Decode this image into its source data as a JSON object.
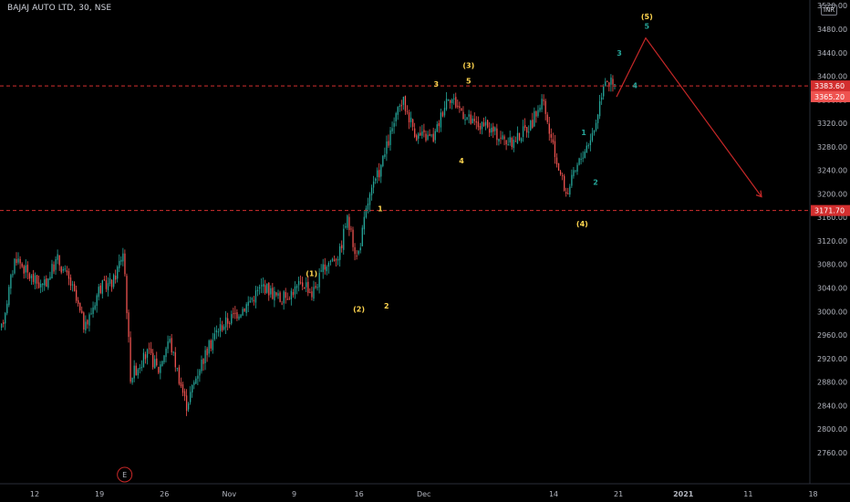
{
  "header": {
    "title": "BAJAJ AUTO LTD, 30, NSE",
    "currency": "INR"
  },
  "colors": {
    "background": "#000000",
    "candle_up": "#26a69a",
    "candle_down": "#ef5350",
    "level_line": "#d32f2f",
    "projection_line": "#c62828",
    "wave_primary": "#ffd54f",
    "wave_minor": "#26a69a",
    "axis_text": "#b2b5be"
  },
  "chart_data": {
    "type": "candlestick",
    "title": "BAJAJ AUTO LTD, 30, NSE",
    "ylim": [
      2735,
      3525
    ],
    "y_ticks": [
      3520,
      3480,
      3440,
      3400,
      3360,
      3320,
      3280,
      3240,
      3200,
      3160,
      3120,
      3080,
      3040,
      3000,
      2960,
      2920,
      2880,
      2840,
      2800,
      2760
    ],
    "y_tick_labels": [
      "3520.00",
      "3480.00",
      "3440.00",
      "3400.00",
      "3360.00",
      "3320.00",
      "3280.00",
      "3240.00",
      "3200.00",
      "3160.00",
      "3120.00",
      "3080.00",
      "3040.00",
      "3000.00",
      "2960.00",
      "2920.00",
      "2880.00",
      "2840.00",
      "2800.00",
      "2760.00"
    ],
    "x_tick_labels": [
      "12",
      "19",
      "26",
      "Nov",
      "9",
      "16",
      "Dec",
      "14",
      "21",
      "2021",
      "11",
      "18"
    ],
    "x_tick_fracs": [
      0.0,
      0.0704,
      0.1408,
      0.2112,
      0.2817,
      0.3521,
      0.4225,
      0.5634,
      0.6338,
      0.7042,
      0.7746,
      0.8451
    ],
    "x_tick_bold": [
      false,
      false,
      false,
      false,
      false,
      false,
      false,
      false,
      false,
      true,
      false,
      false
    ],
    "price_path": [
      [
        0.0,
        2970
      ],
      [
        0.02,
        3095
      ],
      [
        0.04,
        3060
      ],
      [
        0.06,
        3040
      ],
      [
        0.08,
        3090
      ],
      [
        0.1,
        3045
      ],
      [
        0.12,
        2970
      ],
      [
        0.14,
        3040
      ],
      [
        0.16,
        3050
      ],
      [
        0.175,
        3105
      ],
      [
        0.185,
        2890
      ],
      [
        0.21,
        2930
      ],
      [
        0.225,
        2900
      ],
      [
        0.24,
        2955
      ],
      [
        0.265,
        2840
      ],
      [
        0.285,
        2910
      ],
      [
        0.31,
        2970
      ],
      [
        0.35,
        3010
      ],
      [
        0.375,
        3045
      ],
      [
        0.4,
        3020
      ],
      [
        0.435,
        3050
      ],
      [
        0.445,
        3030
      ],
      [
        0.465,
        3080
      ],
      [
        0.485,
        3100
      ],
      [
        0.495,
        3160
      ],
      [
        0.51,
        3090
      ],
      [
        0.515,
        3120
      ],
      [
        0.525,
        3185
      ],
      [
        0.545,
        3250
      ],
      [
        0.56,
        3310
      ],
      [
        0.575,
        3360
      ],
      [
        0.595,
        3300
      ],
      [
        0.62,
        3295
      ],
      [
        0.64,
        3370
      ],
      [
        0.675,
        3320
      ],
      [
        0.7,
        3310
      ],
      [
        0.73,
        3285
      ],
      [
        0.76,
        3320
      ],
      [
        0.775,
        3360
      ],
      [
        0.79,
        3280
      ],
      [
        0.81,
        3200
      ],
      [
        0.83,
        3260
      ],
      [
        0.85,
        3310
      ],
      [
        0.865,
        3400
      ],
      [
        0.88,
        3380
      ]
    ],
    "levels": [
      {
        "price": 3383.6,
        "label": "3383.60"
      },
      {
        "price": 3171.7,
        "label": "3171.70"
      }
    ],
    "current_price": {
      "price": 3365.2,
      "label": "3365.20"
    },
    "projection": {
      "points": [
        [
          0.88,
          3365
        ],
        [
          0.92,
          3465
        ],
        [
          0.96,
          3195
        ]
      ]
    },
    "wave_labels": [
      {
        "text": "(1)",
        "x": 0.395,
        "y": 3060,
        "color": "wave_primary"
      },
      {
        "text": "(2)",
        "x": 0.455,
        "y": 3000,
        "color": "wave_primary"
      },
      {
        "text": "1",
        "x": 0.482,
        "y": 3170,
        "color": "wave_primary"
      },
      {
        "text": "2",
        "x": 0.49,
        "y": 3005,
        "color": "wave_primary"
      },
      {
        "text": "3",
        "x": 0.553,
        "y": 3382,
        "color": "wave_primary"
      },
      {
        "text": "4",
        "x": 0.585,
        "y": 3252,
        "color": "wave_primary"
      },
      {
        "text": "(3)",
        "x": 0.594,
        "y": 3414,
        "color": "wave_primary"
      },
      {
        "text": "5",
        "x": 0.594,
        "y": 3388,
        "color": "wave_primary"
      },
      {
        "text": "(4)",
        "x": 0.738,
        "y": 3145,
        "color": "wave_primary"
      },
      {
        "text": "1",
        "x": 0.74,
        "y": 3300,
        "color": "wave_minor"
      },
      {
        "text": "2",
        "x": 0.755,
        "y": 3215,
        "color": "wave_minor"
      },
      {
        "text": "3",
        "x": 0.785,
        "y": 3435,
        "color": "wave_minor"
      },
      {
        "text": "4",
        "x": 0.805,
        "y": 3380,
        "color": "wave_minor"
      },
      {
        "text": "(5)",
        "x": 0.82,
        "y": 3497,
        "color": "wave_primary"
      },
      {
        "text": "5",
        "x": 0.82,
        "y": 3481,
        "color": "wave_minor"
      }
    ],
    "event_marker": {
      "text": "E",
      "x": 0.158
    }
  }
}
